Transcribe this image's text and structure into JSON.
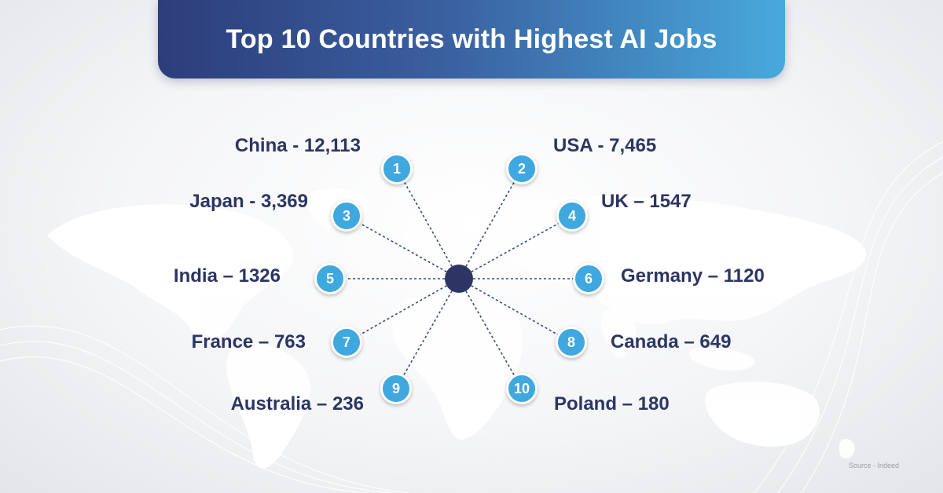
{
  "title": "Top 10 Countries with Highest AI Jobs",
  "entries": [
    {
      "rank": "1",
      "label": "China - 12,113"
    },
    {
      "rank": "2",
      "label": "USA - 7,465"
    },
    {
      "rank": "3",
      "label": "Japan - 3,369"
    },
    {
      "rank": "4",
      "label": "UK – 1547"
    },
    {
      "rank": "5",
      "label": "India – 1326"
    },
    {
      "rank": "6",
      "label": "Germany – 1120"
    },
    {
      "rank": "7",
      "label": "France – 763"
    },
    {
      "rank": "8",
      "label": "Canada – 649"
    },
    {
      "rank": "9",
      "label": "Australia – 236"
    },
    {
      "rank": "10",
      "label": "Poland – 180"
    }
  ],
  "source": "Source - Indeed",
  "colors": {
    "banner_start": "#2c3d7a",
    "banner_end": "#48a9dc",
    "marker": "#3ea8df",
    "hub": "#2c3563",
    "label_text": "#2c3563"
  }
}
